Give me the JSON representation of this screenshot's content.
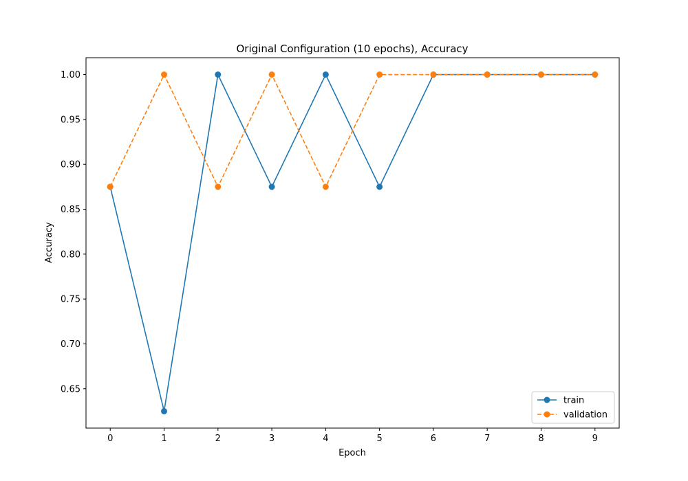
{
  "chart_data": {
    "type": "line",
    "title": "Original Configuration (10 epochs), Accuracy",
    "xlabel": "Epoch",
    "ylabel": "Accuracy",
    "x": [
      0,
      1,
      2,
      3,
      4,
      5,
      6,
      7,
      8,
      9
    ],
    "xlim": [
      -0.45,
      9.45
    ],
    "ylim": [
      0.6062,
      1.0188
    ],
    "xticks": [
      "0",
      "1",
      "2",
      "3",
      "4",
      "5",
      "6",
      "7",
      "8",
      "9"
    ],
    "yticks": [
      "0.65",
      "0.70",
      "0.75",
      "0.80",
      "0.85",
      "0.90",
      "0.95",
      "1.00"
    ],
    "grid": false,
    "legend": "lower-right",
    "series": [
      {
        "name": "train",
        "color": "#1f77b4",
        "linestyle": "solid",
        "marker": "circle",
        "values": [
          0.875,
          0.625,
          1.0,
          0.875,
          1.0,
          0.875,
          1.0,
          1.0,
          1.0,
          1.0
        ]
      },
      {
        "name": "validation",
        "color": "#ff7f0e",
        "linestyle": "dashed",
        "marker": "circle",
        "values": [
          0.875,
          1.0,
          0.875,
          1.0,
          0.875,
          1.0,
          1.0,
          1.0,
          1.0,
          1.0
        ]
      }
    ]
  }
}
